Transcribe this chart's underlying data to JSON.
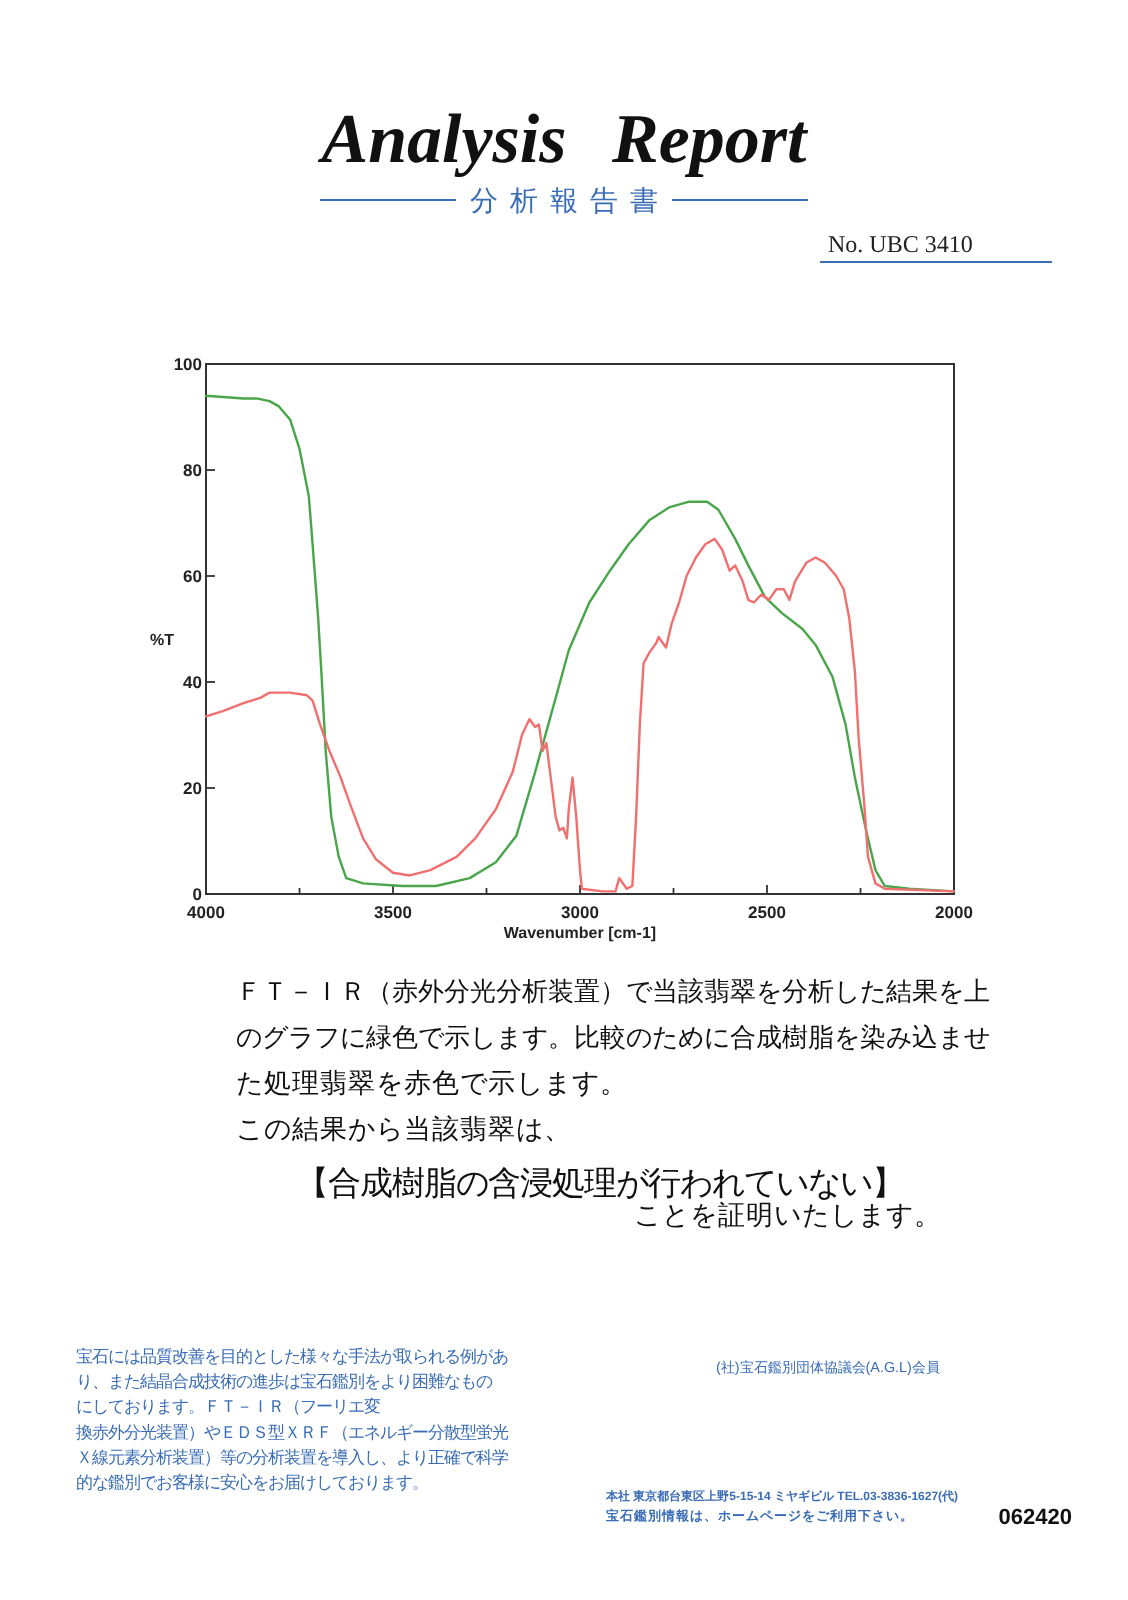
{
  "chart_data": {
    "type": "line",
    "title": "Analysis Report",
    "subtitle": "分析報告書",
    "xlabel": "Wavenumber [cm-1]",
    "ylabel": "%T",
    "xlim": [
      4000,
      2000
    ],
    "xticks": [
      4000,
      {
        "value": 3750,
        "label": null
      },
      3500,
      {
        "value": 3250,
        "label": null
      },
      3000,
      {
        "value": 2750,
        "label": null
      },
      2500,
      {
        "value": 2250,
        "label": null
      },
      2000
    ],
    "ylim": [
      0,
      100
    ],
    "yticks": [
      0,
      20,
      40,
      60,
      80,
      100
    ],
    "series": [
      {
        "color": "#4aa54a",
        "x": [
          4000,
          3900,
          3865,
          3830,
          3805,
          3775,
          3750,
          3725,
          3715,
          3700,
          3690,
          3680,
          3665,
          3645,
          3625,
          3580,
          3475,
          3385,
          3295,
          3225,
          3170,
          3120,
          3065,
          3030,
          2975,
          2920,
          2870,
          2815,
          2760,
          2710,
          2660,
          2630,
          2585,
          2550,
          2505,
          2460,
          2405,
          2370,
          2325,
          2290,
          2265,
          2235,
          2210,
          2185,
          2120,
          2000
        ],
        "values": [
          94,
          93.5,
          93.5,
          93,
          92,
          89.5,
          84,
          75,
          66,
          52,
          40,
          27,
          14.5,
          7,
          3,
          2,
          1.5,
          1.5,
          3,
          6,
          11,
          23,
          37,
          46,
          55,
          61,
          66,
          70.5,
          73,
          74,
          74,
          72.5,
          67,
          62,
          56,
          53,
          50,
          47,
          41,
          32,
          22,
          12,
          4.5,
          1.5,
          1,
          0.5
        ]
      },
      {
        "color": "#f07070",
        "x": [
          4000,
          3955,
          3900,
          3855,
          3830,
          3775,
          3730,
          3715,
          3695,
          3670,
          3640,
          3615,
          3580,
          3545,
          3500,
          3455,
          3400,
          3330,
          3280,
          3225,
          3180,
          3155,
          3135,
          3120,
          3110,
          3100,
          3090,
          3065,
          3055,
          3045,
          3035,
          3030,
          3020,
          3010,
          3000,
          2995,
          2940,
          2905,
          2895,
          2875,
          2860,
          2850,
          2840,
          2830,
          2815,
          2795,
          2790,
          2770,
          2755,
          2735,
          2715,
          2690,
          2665,
          2640,
          2620,
          2600,
          2585,
          2565,
          2550,
          2535,
          2515,
          2495,
          2475,
          2455,
          2440,
          2425,
          2395,
          2370,
          2345,
          2315,
          2295,
          2280,
          2265,
          2255,
          2240,
          2230,
          2210,
          2185,
          2000
        ],
        "values": [
          33.5,
          34.5,
          36,
          37,
          38,
          38,
          37.5,
          36.5,
          32,
          27,
          22,
          17,
          10.5,
          6.5,
          4,
          3.5,
          4.5,
          7,
          10.5,
          16,
          23,
          30,
          33,
          31.5,
          32,
          27,
          28.5,
          14.5,
          12,
          12.5,
          10.5,
          16,
          22,
          14.5,
          4.5,
          1,
          0.5,
          0.5,
          3,
          1,
          1.5,
          14.5,
          32,
          43.5,
          45.5,
          47.5,
          48.5,
          46.5,
          51,
          55,
          60,
          63.5,
          66,
          67,
          65,
          61,
          62,
          59,
          55.5,
          55,
          56.5,
          55.5,
          57.5,
          57.5,
          55.5,
          59,
          62.5,
          63.5,
          62.5,
          60,
          57.5,
          52,
          42,
          29.5,
          17,
          7,
          2,
          1,
          0.5
        ]
      }
    ],
    "annotations": [
      "No. UBC 3410",
      "ＦＴ－ＩＲ（赤外分光分析装置）で当該翡翠を分析した結果を上",
      "のグラフに緑色で示します。比較のために合成樹脂を染み込ませ",
      "た処理翡翠を赤色で示します。",
      "この結果から当該翡翠は、",
      "【合成樹脂の含浸処理が行われていない】",
      "ことを証明いたします。",
      "宝石には品質改善を目的とした様々な手法が取られる例があ",
      "り、また結晶合成技術の進歩は宝石鑑別をより困難なもの",
      "にしております。ＦＴ－ＩＲ（フーリエ変",
      "換赤外分光装置）やＥＤＳ型ＸＲＦ（エネルギー分散型蛍光",
      "Ｘ線元素分析装置）等の分析装置を導入し、より正確で科学",
      "的な鑑別でお客様に安心をお届けしております。",
      "(社)宝石鑑別団体協議会(A.G.L)会員",
      "本社 東京都台東区上野5-15-14 ミヤギビル TEL.03-3836-1627(代)",
      "宝石鑑別情報は、ホームページをご利用下さい。",
      "062420"
    ]
  }
}
